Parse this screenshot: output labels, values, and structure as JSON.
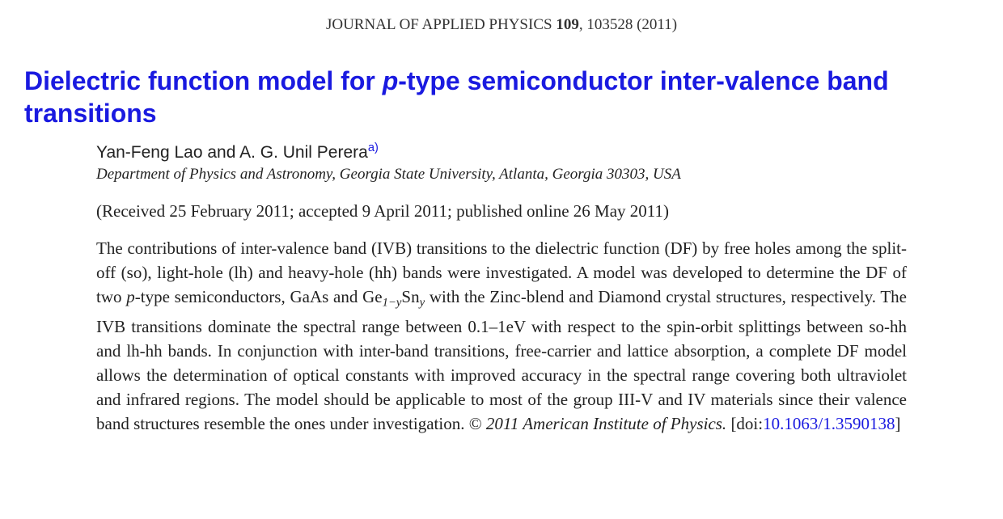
{
  "header": {
    "runs": [
      {
        "text": "JOURNAL OF APPLIED PHYSICS "
      },
      {
        "text": "109",
        "style": "bold"
      },
      {
        "text": ", 103528 (2011)"
      }
    ]
  },
  "title": {
    "runs": [
      {
        "text": "Dielectric function model for "
      },
      {
        "text": "p",
        "style": "italic"
      },
      {
        "text": "-type semiconductor inter-valence band transitions"
      }
    ]
  },
  "authors": {
    "runs": [
      {
        "text": "Yan-Feng Lao and A. G. Unil Perera"
      },
      {
        "text": "a)",
        "style": "sup"
      }
    ]
  },
  "affiliation": {
    "runs": [
      {
        "text": "Department of Physics and Astronomy, Georgia State University, Atlanta, Georgia 30303, USA"
      }
    ]
  },
  "dates": {
    "runs": [
      {
        "text": "(Received 25 February 2011; accepted 9 April 2011; published online 26 May 2011)"
      }
    ]
  },
  "abstract": {
    "runs": [
      {
        "text": "The contributions of inter-valence band (IVB) transitions to the dielectric function (DF) by free holes among the split-off (so), light-hole (lh) and heavy-hole (hh) bands were investigated. A model was developed to determine the DF of two "
      },
      {
        "text": "p",
        "style": "italic"
      },
      {
        "text": "-type semiconductors, GaAs and Ge"
      },
      {
        "text": "1−y",
        "style": "sub"
      },
      {
        "text": "Sn"
      },
      {
        "text": "y",
        "style": "sub"
      },
      {
        "text": " with the Zinc-blend and Diamond crystal structures, respectively. The IVB transitions dominate the spectral range between 0.1–1eV with respect to the spin-orbit splittings between so-hh and lh-hh bands. In conjunction with inter-band transitions, free-carrier and lattice absorption, a complete DF model allows the determination of optical constants with improved accuracy in the spectral range covering both ultraviolet and infrared regions. The model should be applicable to most of the group III-V and IV materials since their valence band structures resemble the ones under investigation. © "
      },
      {
        "text": "2011 American Institute of Physics.",
        "style": "italic"
      },
      {
        "text": " [doi:"
      },
      {
        "text": "10.1063/1.3590138",
        "style": "link"
      },
      {
        "text": "]"
      }
    ]
  }
}
